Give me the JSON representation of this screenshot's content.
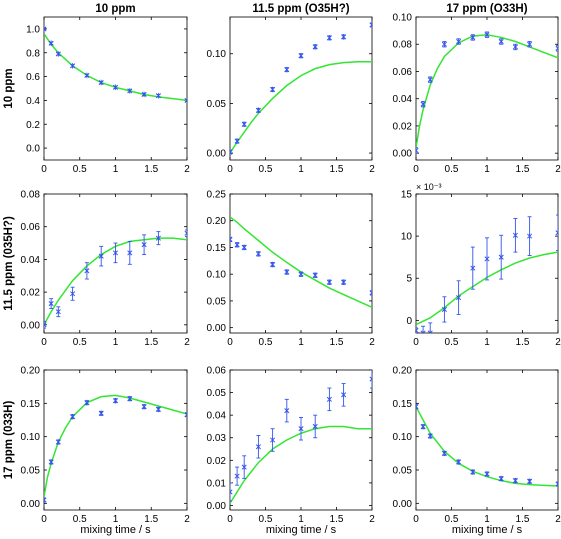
{
  "figure": {
    "col_titles": [
      "10 ppm",
      "11.5 ppm (O35H?)",
      "17 ppm (O33H)"
    ],
    "row_titles": [
      "10 ppm",
      "11.5 ppm (035H?)",
      "17 ppm (033H)"
    ],
    "xlabel": "mixing time / s",
    "colors": {
      "fit": "#33e633",
      "data": "#3355ee"
    }
  },
  "chart_data": [
    {
      "type": "scatter",
      "row": 0,
      "col": 0,
      "title": "10 ppm",
      "xlim": [
        0,
        2
      ],
      "ylim": [
        -0.1,
        1.1
      ],
      "xticks": [
        0,
        0.5,
        1,
        1.5,
        2
      ],
      "xtick_labels": [
        "0",
        "0.5",
        "1",
        "1.5",
        "2"
      ],
      "yticks": [
        0,
        0.2,
        0.4,
        0.6,
        0.8,
        1
      ],
      "ytick_labels": [
        "0.0",
        "0.2",
        "0.4",
        "0.6",
        "0.8",
        "1.0"
      ],
      "series": [
        {
          "kind": "points",
          "x": [
            0,
            0.1,
            0.2,
            0.4,
            0.6,
            0.8,
            1.0,
            1.2,
            1.4,
            1.6,
            2.0
          ],
          "y": [
            1.0,
            0.88,
            0.79,
            0.69,
            0.61,
            0.55,
            0.51,
            0.48,
            0.45,
            0.44,
            0.4
          ],
          "err": [
            0.01,
            0.01,
            0.01,
            0.01,
            0.01,
            0.01,
            0.01,
            0.01,
            0.01,
            0.01,
            0.01
          ]
        },
        {
          "kind": "fit",
          "x": [
            0,
            0.1,
            0.2,
            0.4,
            0.6,
            0.8,
            1.0,
            1.2,
            1.4,
            1.6,
            2.0
          ],
          "y": [
            0.96,
            0.87,
            0.8,
            0.69,
            0.61,
            0.55,
            0.51,
            0.48,
            0.45,
            0.43,
            0.4
          ]
        }
      ]
    },
    {
      "type": "scatter",
      "row": 0,
      "col": 1,
      "title": "11.5 ppm (O35H?)",
      "xlim": [
        0,
        2
      ],
      "ylim": [
        -0.007,
        0.137
      ],
      "xticks": [
        0,
        0.5,
        1,
        1.5,
        2
      ],
      "xtick_labels": [
        "0",
        "0.5",
        "1",
        "1.5",
        "2"
      ],
      "yticks": [
        0,
        0.05,
        0.1
      ],
      "ytick_labels": [
        "0.00",
        "0.05",
        "0.10"
      ],
      "series": [
        {
          "kind": "points",
          "x": [
            0,
            0.1,
            0.2,
            0.4,
            0.6,
            0.8,
            1.0,
            1.2,
            1.4,
            1.6,
            2.0
          ],
          "y": [
            0.001,
            0.012,
            0.029,
            0.043,
            0.064,
            0.084,
            0.098,
            0.107,
            0.116,
            0.117,
            0.129
          ],
          "err": [
            0.002,
            0.002,
            0.002,
            0.002,
            0.002,
            0.002,
            0.002,
            0.002,
            0.002,
            0.002,
            0.002
          ]
        },
        {
          "kind": "fit",
          "x": [
            0,
            0.1,
            0.2,
            0.3,
            0.4,
            0.6,
            0.8,
            1.0,
            1.2,
            1.4,
            1.6,
            1.8,
            2.0
          ],
          "y": [
            0.0,
            0.011,
            0.021,
            0.031,
            0.04,
            0.055,
            0.068,
            0.078,
            0.085,
            0.089,
            0.091,
            0.092,
            0.092
          ]
        }
      ]
    },
    {
      "type": "scatter",
      "row": 0,
      "col": 2,
      "title": "17 ppm (O33H)",
      "xlim": [
        0,
        2
      ],
      "ylim": [
        -0.005,
        0.1
      ],
      "xticks": [
        0,
        0.5,
        1,
        1.5,
        2
      ],
      "xtick_labels": [
        "0",
        "0.5",
        "1",
        "1.5",
        "2"
      ],
      "yticks": [
        0,
        0.02,
        0.04,
        0.06,
        0.08,
        0.1
      ],
      "ytick_labels": [
        "0.00",
        "0.02",
        "0.04",
        "0.06",
        "0.08",
        "0.10"
      ],
      "series": [
        {
          "kind": "points",
          "x": [
            0,
            0.1,
            0.2,
            0.4,
            0.6,
            0.8,
            1.0,
            1.2,
            1.4,
            1.6,
            2.0
          ],
          "y": [
            0.002,
            0.036,
            0.054,
            0.08,
            0.082,
            0.085,
            0.087,
            0.082,
            0.078,
            0.08,
            0.077
          ],
          "err": [
            0.002,
            0.002,
            0.002,
            0.002,
            0.002,
            0.002,
            0.002,
            0.002,
            0.002,
            0.002,
            0.002
          ]
        },
        {
          "kind": "fit",
          "x": [
            0,
            0.05,
            0.1,
            0.2,
            0.3,
            0.4,
            0.6,
            0.8,
            1.0,
            1.2,
            1.4,
            1.6,
            1.8,
            2.0
          ],
          "y": [
            0.004,
            0.02,
            0.032,
            0.05,
            0.062,
            0.071,
            0.081,
            0.086,
            0.087,
            0.085,
            0.082,
            0.078,
            0.074,
            0.07
          ]
        }
      ]
    },
    {
      "type": "scatter",
      "row": 1,
      "col": 0,
      "title": "",
      "xlim": [
        0,
        2
      ],
      "ylim": [
        -0.005,
        0.08
      ],
      "xticks": [
        0,
        0.5,
        1,
        1.5,
        2
      ],
      "xtick_labels": [
        "0",
        "0.5",
        "1",
        "1.5",
        "2"
      ],
      "yticks": [
        0,
        0.02,
        0.04,
        0.06,
        0.08
      ],
      "ytick_labels": [
        "0.00",
        "0.02",
        "0.04",
        "0.06",
        "0.08"
      ],
      "series": [
        {
          "kind": "points",
          "x": [
            0,
            0.1,
            0.2,
            0.4,
            0.6,
            0.8,
            1.0,
            1.2,
            1.4,
            1.6,
            2.0
          ],
          "y": [
            0.0,
            0.013,
            0.008,
            0.019,
            0.033,
            0.042,
            0.044,
            0.044,
            0.049,
            0.053,
            0.056
          ],
          "err": [
            0.002,
            0.003,
            0.003,
            0.004,
            0.005,
            0.006,
            0.006,
            0.007,
            0.006,
            0.004,
            0.002
          ]
        },
        {
          "kind": "fit",
          "x": [
            0,
            0.1,
            0.2,
            0.3,
            0.4,
            0.6,
            0.8,
            1.0,
            1.2,
            1.4,
            1.6,
            1.8,
            2.0
          ],
          "y": [
            0.0,
            0.008,
            0.015,
            0.021,
            0.027,
            0.036,
            0.043,
            0.048,
            0.051,
            0.052,
            0.053,
            0.053,
            0.052
          ]
        }
      ]
    },
    {
      "type": "scatter",
      "row": 1,
      "col": 1,
      "title": "",
      "xlim": [
        0,
        2
      ],
      "ylim": [
        -0.01,
        0.25
      ],
      "xticks": [
        0,
        0.5,
        1,
        1.5,
        2
      ],
      "xtick_labels": [
        "0",
        "0.5",
        "1",
        "1.5",
        "2"
      ],
      "yticks": [
        0,
        0.05,
        0.1,
        0.15,
        0.2,
        0.25
      ],
      "ytick_labels": [
        "0.00",
        "0.05",
        "0.10",
        "0.15",
        "0.20",
        "0.25"
      ],
      "series": [
        {
          "kind": "points",
          "x": [
            0,
            0.1,
            0.2,
            0.4,
            0.6,
            0.8,
            1.0,
            1.2,
            1.4,
            1.6,
            2.0
          ],
          "y": [
            0.165,
            0.155,
            0.15,
            0.138,
            0.118,
            0.104,
            0.1,
            0.098,
            0.085,
            0.085,
            0.065
          ],
          "err": [
            0.004,
            0.004,
            0.004,
            0.004,
            0.004,
            0.004,
            0.004,
            0.004,
            0.004,
            0.004,
            0.004
          ]
        },
        {
          "kind": "fit",
          "x": [
            0,
            0.1,
            0.2,
            0.4,
            0.6,
            0.8,
            1.0,
            1.2,
            1.4,
            1.6,
            1.8,
            2.0
          ],
          "y": [
            0.207,
            0.197,
            0.185,
            0.163,
            0.141,
            0.122,
            0.104,
            0.089,
            0.074,
            0.062,
            0.05,
            0.038
          ]
        }
      ]
    },
    {
      "type": "scatter",
      "row": 1,
      "col": 2,
      "title": "",
      "axis_multiplier": "× 10⁻³",
      "xlim": [
        0,
        2
      ],
      "ylim": [
        -1.5,
        15
      ],
      "xticks": [
        0,
        0.5,
        1,
        1.5,
        2
      ],
      "xtick_labels": [
        "0",
        "0.5",
        "1",
        "1.5",
        "2"
      ],
      "yticks": [
        0,
        5,
        10,
        15
      ],
      "ytick_labels": [
        "0",
        "5",
        "10",
        "15"
      ],
      "series": [
        {
          "kind": "points",
          "x": [
            0,
            0.1,
            0.2,
            0.4,
            0.6,
            0.8,
            1.0,
            1.2,
            1.4,
            1.6,
            2.0
          ],
          "y": [
            -1.2,
            -1.5,
            -1.5,
            1.3,
            2.7,
            6.2,
            7.3,
            7.5,
            10.1,
            10.0,
            10.4
          ],
          "err": [
            0.3,
            0.8,
            1.2,
            1.5,
            2.0,
            2.5,
            2.5,
            2.6,
            2.0,
            2.3,
            2.1
          ]
        },
        {
          "kind": "fit",
          "x": [
            0,
            0.2,
            0.4,
            0.6,
            0.8,
            1.0,
            1.2,
            1.4,
            1.6,
            1.8,
            2.0
          ],
          "y": [
            -0.5,
            0.3,
            1.5,
            2.9,
            4.0,
            5.1,
            6.0,
            6.8,
            7.4,
            7.8,
            8.1
          ]
        }
      ]
    },
    {
      "type": "scatter",
      "row": 2,
      "col": 0,
      "title": "",
      "xlim": [
        0,
        2
      ],
      "ylim": [
        -0.01,
        0.2
      ],
      "xticks": [
        0,
        0.5,
        1,
        1.5,
        2
      ],
      "xtick_labels": [
        "0",
        "0.5",
        "1",
        "1.5",
        "2"
      ],
      "yticks": [
        0,
        0.05,
        0.1,
        0.15,
        0.2
      ],
      "ytick_labels": [
        "0.00",
        "0.05",
        "0.10",
        "0.15",
        "0.20"
      ],
      "series": [
        {
          "kind": "points",
          "x": [
            0,
            0.1,
            0.2,
            0.4,
            0.6,
            0.8,
            1.0,
            1.2,
            1.4,
            1.6,
            2.0
          ],
          "y": [
            0.005,
            0.062,
            0.092,
            0.13,
            0.151,
            0.135,
            0.154,
            0.157,
            0.145,
            0.141,
            0.133
          ],
          "err": [
            0.003,
            0.003,
            0.003,
            0.003,
            0.003,
            0.003,
            0.003,
            0.003,
            0.003,
            0.003,
            0.003
          ]
        },
        {
          "kind": "fit",
          "x": [
            0,
            0.05,
            0.1,
            0.2,
            0.3,
            0.4,
            0.6,
            0.8,
            1.0,
            1.2,
            1.4,
            1.6,
            1.8,
            2.0
          ],
          "y": [
            0.01,
            0.04,
            0.06,
            0.092,
            0.113,
            0.13,
            0.151,
            0.16,
            0.162,
            0.158,
            0.152,
            0.146,
            0.14,
            0.134
          ]
        }
      ]
    },
    {
      "type": "scatter",
      "row": 2,
      "col": 1,
      "title": "",
      "xlim": [
        0,
        2
      ],
      "ylim": [
        -0.002,
        0.06
      ],
      "xticks": [
        0,
        0.5,
        1,
        1.5,
        2
      ],
      "xtick_labels": [
        "0",
        "0.5",
        "1",
        "1.5",
        "2"
      ],
      "yticks": [
        0,
        0.01,
        0.02,
        0.03,
        0.04,
        0.05,
        0.06
      ],
      "ytick_labels": [
        "0.00",
        "0.01",
        "0.02",
        "0.03",
        "0.04",
        "0.05",
        "0.06"
      ],
      "series": [
        {
          "kind": "points",
          "x": [
            0,
            0.1,
            0.2,
            0.4,
            0.6,
            0.8,
            1.0,
            1.2,
            1.4,
            1.6,
            2.0
          ],
          "y": [
            0.006,
            0.013,
            0.017,
            0.026,
            0.029,
            0.042,
            0.034,
            0.035,
            0.047,
            0.049,
            0.056
          ],
          "err": [
            0.004,
            0.004,
            0.005,
            0.005,
            0.005,
            0.005,
            0.005,
            0.005,
            0.005,
            0.005,
            0.004
          ]
        },
        {
          "kind": "fit",
          "x": [
            0,
            0.1,
            0.2,
            0.3,
            0.4,
            0.6,
            0.8,
            1.0,
            1.2,
            1.4,
            1.6,
            1.8,
            2.0
          ],
          "y": [
            0.001,
            0.006,
            0.011,
            0.015,
            0.019,
            0.025,
            0.029,
            0.032,
            0.034,
            0.035,
            0.035,
            0.034,
            0.034
          ]
        }
      ]
    },
    {
      "type": "scatter",
      "row": 2,
      "col": 2,
      "title": "",
      "xlim": [
        0,
        2
      ],
      "ylim": [
        -0.01,
        0.2
      ],
      "xticks": [
        0,
        0.5,
        1,
        1.5,
        2
      ],
      "xtick_labels": [
        "0",
        "0.5",
        "1",
        "1.5",
        "2"
      ],
      "yticks": [
        0,
        0.05,
        0.1,
        0.15,
        0.2
      ],
      "ytick_labels": [
        "0.00",
        "0.05",
        "0.10",
        "0.15",
        "0.20"
      ],
      "series": [
        {
          "kind": "points",
          "x": [
            0,
            0.1,
            0.2,
            0.4,
            0.6,
            0.8,
            1.0,
            1.2,
            1.4,
            1.6,
            2.0
          ],
          "y": [
            0.145,
            0.115,
            0.101,
            0.075,
            0.062,
            0.047,
            0.044,
            0.037,
            0.034,
            0.033,
            0.029
          ],
          "err": [
            0.003,
            0.003,
            0.003,
            0.003,
            0.003,
            0.003,
            0.003,
            0.003,
            0.003,
            0.003,
            0.003
          ]
        },
        {
          "kind": "fit",
          "x": [
            0,
            0.1,
            0.2,
            0.4,
            0.6,
            0.8,
            1.0,
            1.2,
            1.4,
            1.6,
            1.8,
            2.0
          ],
          "y": [
            0.145,
            0.125,
            0.105,
            0.078,
            0.06,
            0.048,
            0.04,
            0.034,
            0.03,
            0.028,
            0.027,
            0.026
          ]
        }
      ]
    }
  ]
}
